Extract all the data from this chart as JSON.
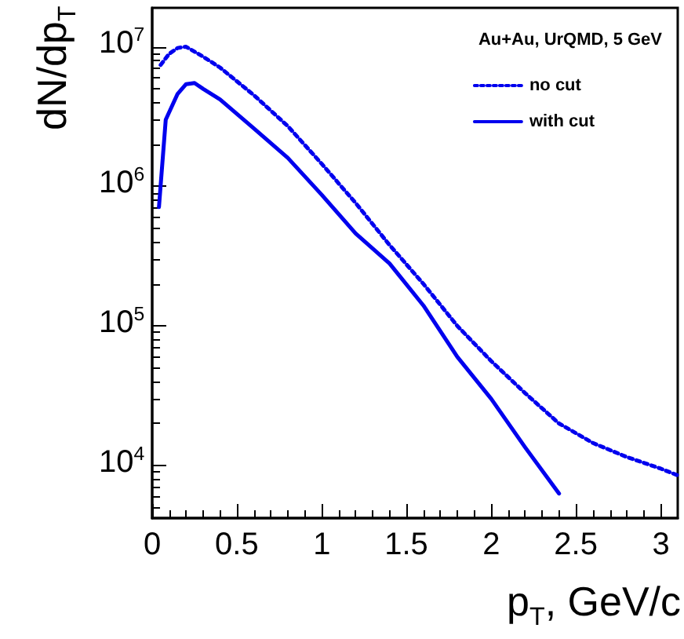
{
  "chart_data": {
    "type": "line",
    "legend_title": "Au+Au, UrQMD, 5 GeV",
    "xlabel": "p$_{T}$, GeV/c",
    "ylabel": "dN/dp$_{T}$",
    "xlim": [
      0,
      3.1
    ],
    "xticks": [
      0,
      0.5,
      1,
      1.5,
      2,
      2.5,
      3
    ],
    "ylim": [
      4200,
      19000000
    ],
    "yticks": [
      {
        "value": 10000,
        "label": "10$^{4}$"
      },
      {
        "value": 100000,
        "label": "10$^{5}$"
      },
      {
        "value": 1000000,
        "label": "10$^{6}$"
      },
      {
        "value": 10000000,
        "label": "10$^{7}$"
      }
    ],
    "log": "y",
    "grid": false,
    "legend": "top right",
    "marker": "none",
    "series": [
      {
        "name": "no cut",
        "color": "#0000ee",
        "line_style": "dotted",
        "x": [
          0.05,
          0.1,
          0.15,
          0.2,
          0.3,
          0.4,
          0.6,
          0.8,
          1.0,
          1.2,
          1.4,
          1.6,
          1.8,
          2.0,
          2.2,
          2.4,
          2.6,
          2.8,
          3.0,
          3.1
        ],
        "values": [
          7400000,
          8900000,
          9800000,
          10000000,
          8500000,
          7100000,
          4500000,
          2700000,
          1450000,
          760000,
          380000,
          200000,
          100000,
          56000,
          33000,
          20000,
          14500,
          11500,
          9500,
          8500
        ]
      },
      {
        "name": "with cut",
        "color": "#0000ee",
        "line_style": "solid",
        "x": [
          0.04,
          0.08,
          0.15,
          0.2,
          0.25,
          0.3,
          0.4,
          0.6,
          0.8,
          1.0,
          1.2,
          1.4,
          1.6,
          1.8,
          2.0,
          2.2,
          2.4
        ],
        "values": [
          710000,
          3000000,
          4600000,
          5400000,
          5500000,
          5000000,
          4200000,
          2600000,
          1600000,
          870000,
          460000,
          280000,
          140000,
          60000,
          30000,
          13500,
          6300
        ]
      }
    ]
  }
}
